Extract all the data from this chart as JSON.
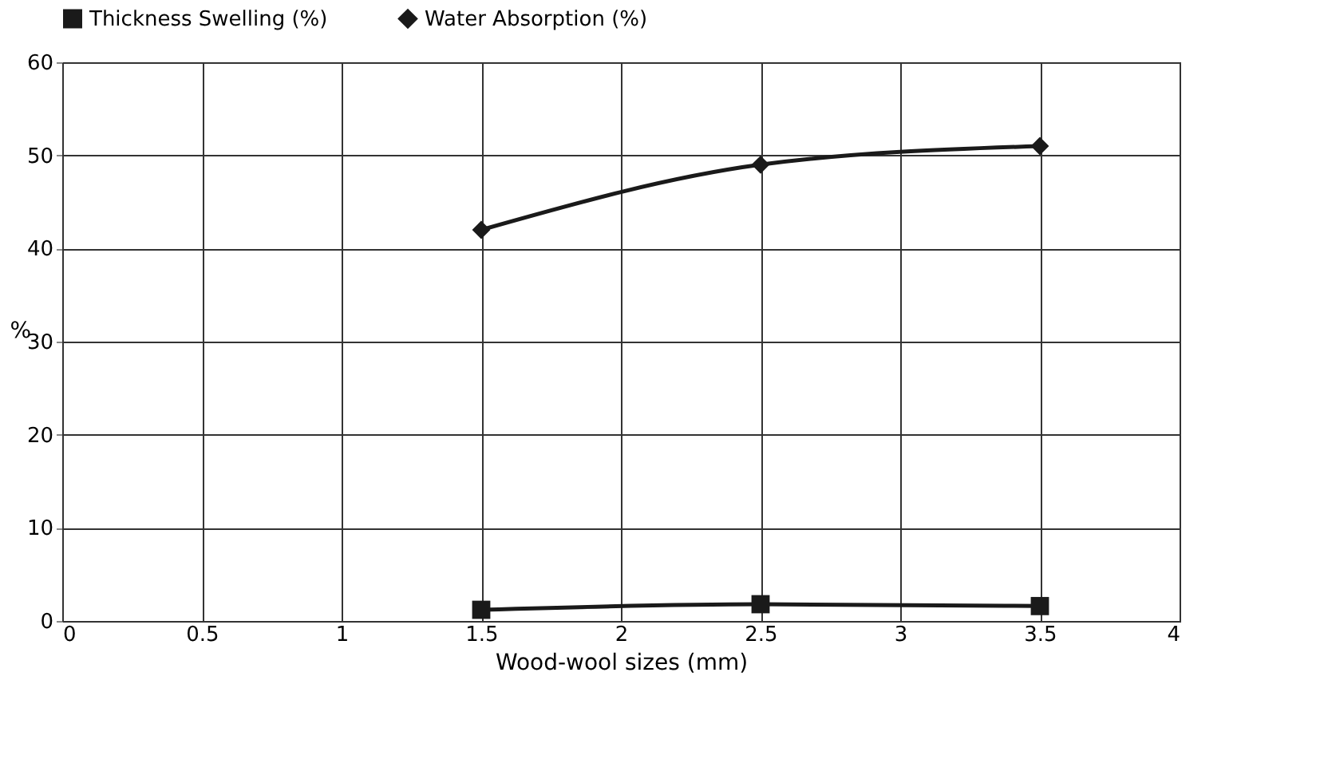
{
  "chart_data": {
    "type": "line",
    "xlabel": "Wood-wool sizes (mm)",
    "ylabel": "%",
    "x": [
      1.5,
      2.5,
      3.5
    ],
    "series": [
      {
        "name": "Thickness Swelling (%)",
        "color": "#1a1a1a",
        "marker": "square",
        "values": [
          1.2,
          1.8,
          1.6
        ]
      },
      {
        "name": "Water Absorption (%)",
        "color": "#1a1a1a",
        "marker": "diamond",
        "values": [
          42,
          49,
          51
        ]
      }
    ],
    "xlim": [
      0,
      4
    ],
    "xticks": [
      0,
      0.5,
      1,
      1.5,
      2,
      2.5,
      3,
      3.5,
      4
    ],
    "ylim": [
      0,
      60
    ],
    "yticks": [
      0,
      10,
      20,
      30,
      40,
      50,
      60
    ],
    "grid": true,
    "legend": "top",
    "line_style": "solid"
  }
}
